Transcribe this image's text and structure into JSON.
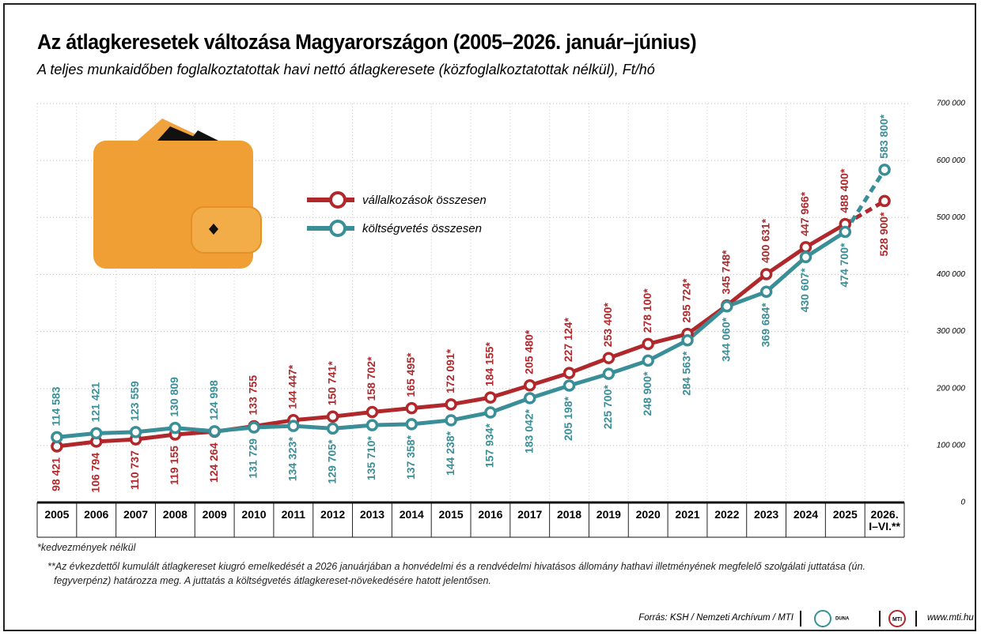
{
  "chart_data": {
    "type": "line",
    "title": "Az átlagkeresetek változása Magyarországon (2005–2026. január–június)",
    "subtitle": "A teljes munkaidőben foglalkoztatottak havi nettó átlagkeresete (közfoglalkoztatottak nélkül), Ft/hó",
    "categories": [
      "2005",
      "2006",
      "2007",
      "2008",
      "2009",
      "2010",
      "2011",
      "2012",
      "2013",
      "2014",
      "2015",
      "2016",
      "2017",
      "2018",
      "2019",
      "2020",
      "2021",
      "2022",
      "2023",
      "2024",
      "2025",
      "2026.\nI–VI.**"
    ],
    "series": [
      {
        "name": "vállalkozások összesen",
        "color": "#b0282b",
        "values": [
          98421,
          106794,
          110737,
          119155,
          124264,
          133755,
          144447,
          150741,
          158702,
          165495,
          172091,
          184155,
          205480,
          227124,
          253400,
          278100,
          295724,
          345748,
          400631,
          447966,
          488400,
          528900
        ],
        "value_labels": [
          "98 421",
          "106 794",
          "110 737",
          "119 155",
          "124 264",
          "133 755",
          "144 447*",
          "150 741*",
          "158 702*",
          "165 495*",
          "172 091*",
          "184 155*",
          "205 480*",
          "227 124*",
          "253 400*",
          "278 100*",
          "295 724*",
          "345 748*",
          "400 631*",
          "447 966*",
          "488 400*",
          "528 900*"
        ]
      },
      {
        "name": "költségvetés összesen",
        "color": "#3a8e97",
        "values": [
          114583,
          121421,
          123559,
          130809,
          124998,
          131729,
          134323,
          129705,
          135710,
          137358,
          144238,
          157934,
          183042,
          205198,
          225700,
          248900,
          284563,
          344060,
          369684,
          430607,
          474700,
          583800
        ],
        "value_labels": [
          "114 583",
          "121 421",
          "123 559",
          "130 809",
          "124 998",
          "131 729",
          "134 323*",
          "129 705*",
          "135 710*",
          "137 358*",
          "144 238*",
          "157 934*",
          "183 042*",
          "205 198*",
          "225 700*",
          "248 900*",
          "284 563*",
          "344 060*",
          "369 684*",
          "430 607*",
          "474 700*",
          "583 800*"
        ]
      }
    ],
    "ylim": [
      0,
      700000
    ],
    "yticks": [
      0,
      {
        "value": 100000,
        "label": "100 000"
      },
      {
        "value": 200000,
        "label": "200 000"
      },
      {
        "value": 300000,
        "label": "300 000"
      },
      {
        "value": 400000,
        "label": "400 000"
      },
      {
        "value": 500000,
        "label": "500 000"
      },
      {
        "value": 600000,
        "label": "600 000"
      },
      {
        "value": 700000,
        "label": "700 000"
      }
    ],
    "grid": true,
    "dashed_last_segment": true,
    "notes": [
      "*kedvezmények nélkül",
      "**Az évkezdettől kumulált átlagkereset kiugró emelkedését a 2026 januárjában a honvédelmi és a rendvédelmi hivatásos állomány hathavi illetményének megfelelő szolgálati juttatása (ún. fegyverpénz) határozza meg. A juttatás a költségvetés átlagkereset-növekedésére hatott jelentősen."
    ],
    "source": "Forrás: KSH / Nemzeti Archívum / MTI",
    "logos": [
      "DUNA",
      "MTI"
    ],
    "website": "www.mti.hu"
  }
}
